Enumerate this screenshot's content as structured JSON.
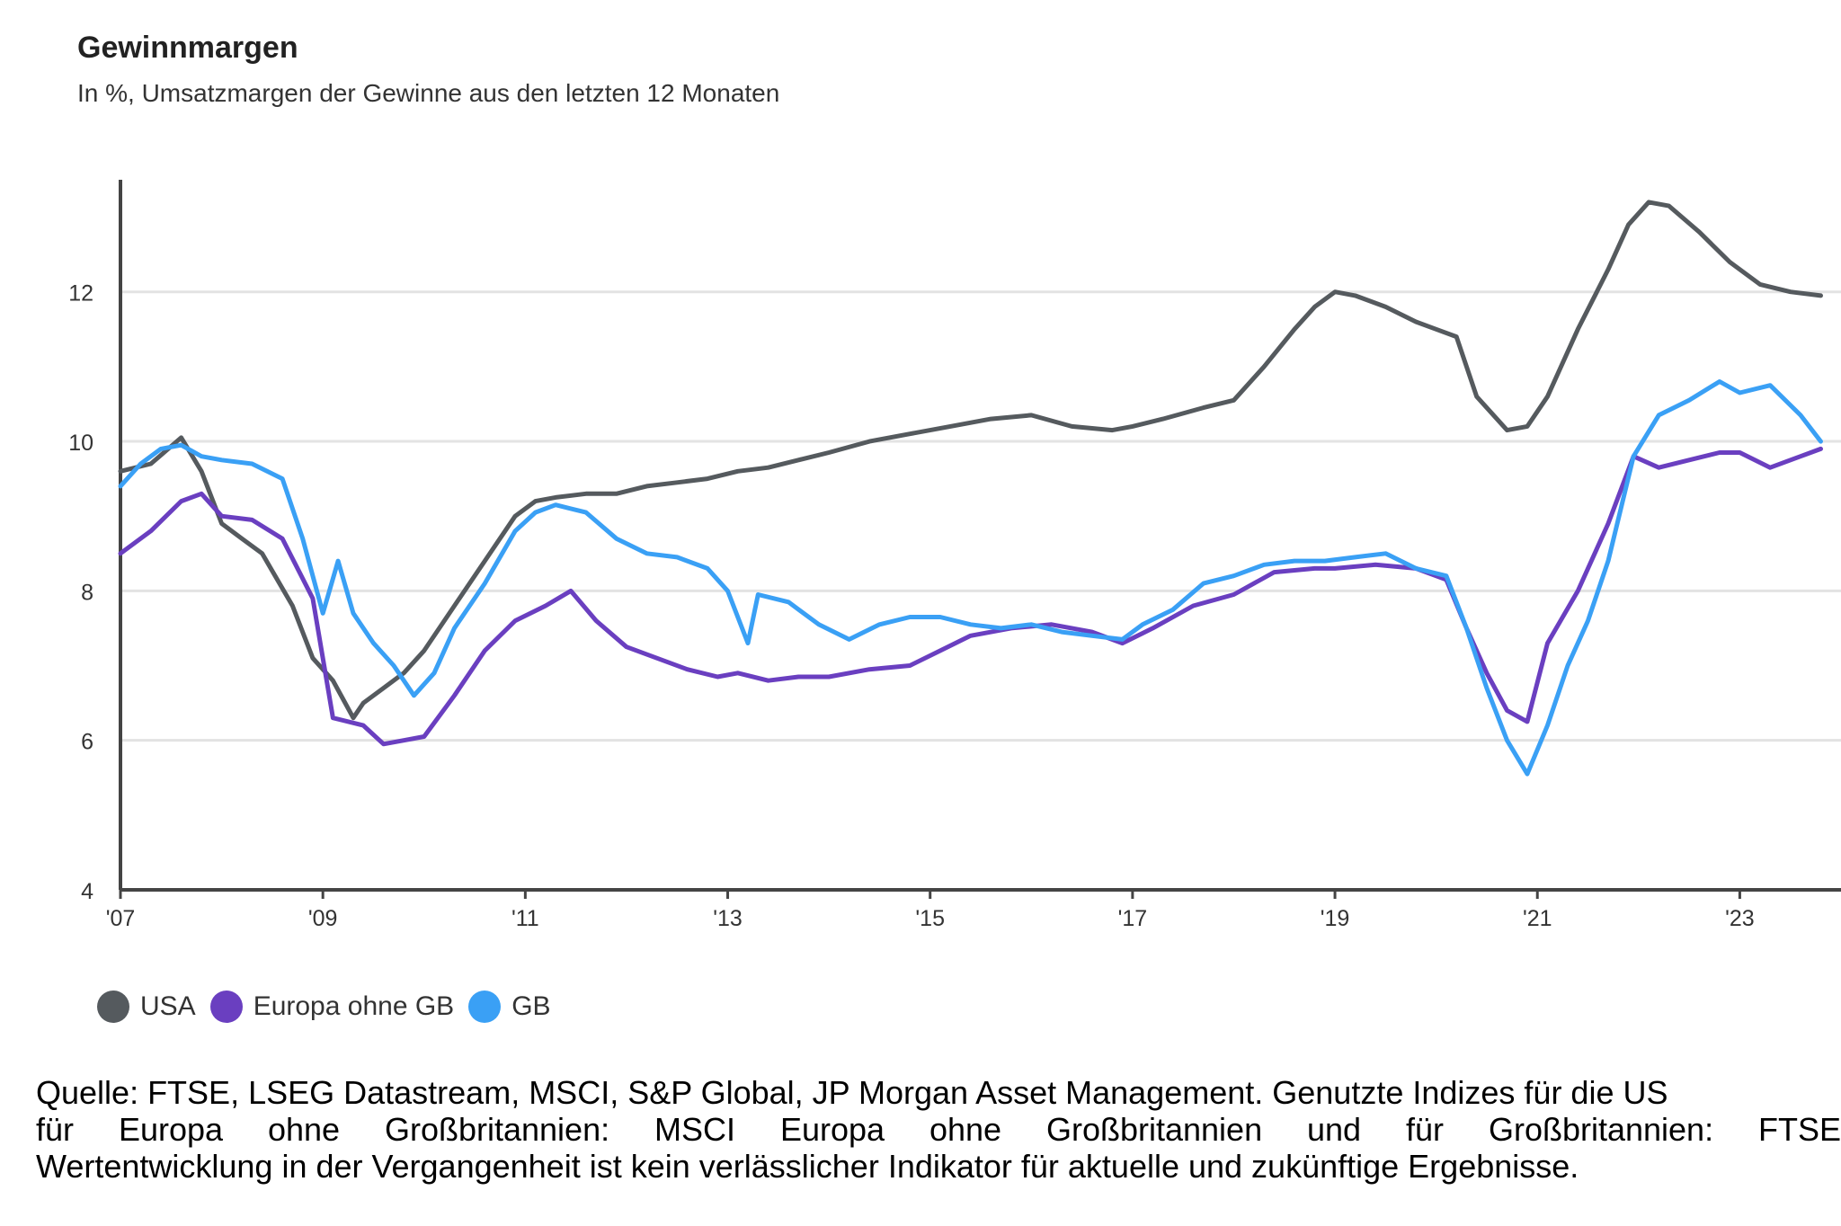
{
  "header": {
    "title": "Gewinnmargen",
    "subtitle": "In %, Umsatzmargen der Gewinne aus den letzten 12 Monaten"
  },
  "legend": [
    {
      "label": "USA",
      "color": "#555a5e"
    },
    {
      "label": "Europa ohne GB",
      "color": "#6a3fc0"
    },
    {
      "label": "GB",
      "color": "#3aa0f5"
    }
  ],
  "source": {
    "line1": "Quelle: FTSE, LSEG Datastream, MSCI, S&P Global, JP Morgan Asset Management. Genutzte Indizes für die US",
    "line2_words": [
      "für",
      "Europa",
      "ohne",
      "Großbritannien:",
      "MSCI",
      "Europa",
      "ohne",
      "Großbritannien",
      "und",
      "für",
      "Großbritannien:",
      "FTSE-All"
    ],
    "line3": "Wertentwicklung in der Vergangenheit ist kein verlässlicher Indikator für aktuelle und zukünftige Ergebnisse."
  },
  "chart_data": {
    "type": "line",
    "title": "Gewinnmargen",
    "subtitle": "In %, Umsatzmargen der Gewinne aus den letzten 12 Monaten",
    "xlabel": "",
    "ylabel": "",
    "xlim": [
      2007.0,
      2024.0
    ],
    "ylim": [
      4,
      13.5
    ],
    "yticks": [
      4,
      6,
      8,
      10,
      12
    ],
    "xticks": [
      {
        "value": 2007,
        "label": "'07"
      },
      {
        "value": 2009,
        "label": "'09"
      },
      {
        "value": 2011,
        "label": "'11"
      },
      {
        "value": 2013,
        "label": "'13"
      },
      {
        "value": 2015,
        "label": "'15"
      },
      {
        "value": 2017,
        "label": "'17"
      },
      {
        "value": 2019,
        "label": "'19"
      },
      {
        "value": 2021,
        "label": "'21"
      },
      {
        "value": 2023,
        "label": "'23"
      }
    ],
    "grid": "horizontal",
    "legend_position": "bottom-left",
    "series": [
      {
        "name": "USA",
        "color": "#555a5e",
        "x": [
          2007.0,
          2007.3,
          2007.6,
          2007.8,
          2008.0,
          2008.2,
          2008.4,
          2008.7,
          2008.9,
          2009.1,
          2009.3,
          2009.4,
          2009.6,
          2009.8,
          2010.0,
          2010.3,
          2010.6,
          2010.9,
          2011.1,
          2011.3,
          2011.6,
          2011.9,
          2012.2,
          2012.5,
          2012.8,
          2013.1,
          2013.4,
          2013.7,
          2014.0,
          2014.4,
          2014.8,
          2015.2,
          2015.6,
          2016.0,
          2016.4,
          2016.8,
          2017.0,
          2017.3,
          2017.7,
          2018.0,
          2018.3,
          2018.6,
          2018.8,
          2019.0,
          2019.2,
          2019.5,
          2019.8,
          2020.0,
          2020.2,
          2020.4,
          2020.7,
          2020.9,
          2021.1,
          2021.4,
          2021.7,
          2021.9,
          2022.1,
          2022.3,
          2022.6,
          2022.9,
          2023.2,
          2023.5,
          2023.8
        ],
        "y": [
          9.6,
          9.7,
          10.05,
          9.6,
          8.9,
          8.7,
          8.5,
          7.8,
          7.1,
          6.8,
          6.3,
          6.5,
          6.7,
          6.9,
          7.2,
          7.8,
          8.4,
          9.0,
          9.2,
          9.25,
          9.3,
          9.3,
          9.4,
          9.45,
          9.5,
          9.6,
          9.65,
          9.75,
          9.85,
          10.0,
          10.1,
          10.2,
          10.3,
          10.35,
          10.2,
          10.15,
          10.2,
          10.3,
          10.45,
          10.55,
          11.0,
          11.5,
          11.8,
          12.0,
          11.95,
          11.8,
          11.6,
          11.5,
          11.4,
          10.6,
          10.15,
          10.2,
          10.6,
          11.5,
          12.3,
          12.9,
          13.2,
          13.15,
          12.8,
          12.4,
          12.1,
          12.0,
          11.95
        ]
      },
      {
        "name": "Europa ohne GB",
        "color": "#6a3fc0",
        "x": [
          2007.0,
          2007.3,
          2007.6,
          2007.8,
          2008.0,
          2008.3,
          2008.6,
          2008.9,
          2009.1,
          2009.4,
          2009.6,
          2009.8,
          2010.0,
          2010.3,
          2010.6,
          2010.9,
          2011.2,
          2011.45,
          2011.7,
          2012.0,
          2012.3,
          2012.6,
          2012.9,
          2013.1,
          2013.4,
          2013.7,
          2014.0,
          2014.4,
          2014.8,
          2015.1,
          2015.4,
          2015.8,
          2016.2,
          2016.6,
          2016.9,
          2017.2,
          2017.6,
          2018.0,
          2018.4,
          2018.8,
          2019.0,
          2019.4,
          2019.8,
          2020.1,
          2020.3,
          2020.5,
          2020.7,
          2020.9,
          2021.1,
          2021.4,
          2021.7,
          2021.95,
          2022.2,
          2022.5,
          2022.8,
          2023.0,
          2023.3,
          2023.6,
          2023.8
        ],
        "y": [
          8.5,
          8.8,
          9.2,
          9.3,
          9.0,
          8.95,
          8.7,
          7.9,
          6.3,
          6.2,
          5.95,
          6.0,
          6.05,
          6.6,
          7.2,
          7.6,
          7.8,
          8.0,
          7.6,
          7.25,
          7.1,
          6.95,
          6.85,
          6.9,
          6.8,
          6.85,
          6.85,
          6.95,
          7.0,
          7.2,
          7.4,
          7.5,
          7.55,
          7.45,
          7.3,
          7.5,
          7.8,
          7.95,
          8.25,
          8.3,
          8.3,
          8.35,
          8.3,
          8.15,
          7.5,
          6.9,
          6.4,
          6.25,
          7.3,
          8.0,
          8.9,
          9.8,
          9.65,
          9.75,
          9.85,
          9.85,
          9.65,
          9.8,
          9.9
        ]
      },
      {
        "name": "GB",
        "color": "#3aa0f5",
        "x": [
          2007.0,
          2007.2,
          2007.4,
          2007.6,
          2007.8,
          2008.0,
          2008.3,
          2008.6,
          2008.8,
          2009.0,
          2009.15,
          2009.3,
          2009.5,
          2009.7,
          2009.9,
          2010.1,
          2010.3,
          2010.6,
          2010.9,
          2011.1,
          2011.3,
          2011.6,
          2011.9,
          2012.2,
          2012.5,
          2012.8,
          2013.0,
          2013.2,
          2013.3,
          2013.6,
          2013.9,
          2014.2,
          2014.5,
          2014.8,
          2015.1,
          2015.4,
          2015.7,
          2016.0,
          2016.3,
          2016.6,
          2016.9,
          2017.1,
          2017.4,
          2017.7,
          2018.0,
          2018.3,
          2018.6,
          2018.9,
          2019.2,
          2019.5,
          2019.8,
          2020.1,
          2020.3,
          2020.5,
          2020.7,
          2020.9,
          2021.1,
          2021.3,
          2021.5,
          2021.7,
          2021.95,
          2022.2,
          2022.5,
          2022.8,
          2023.0,
          2023.3,
          2023.6,
          2023.8
        ],
        "y": [
          9.4,
          9.7,
          9.9,
          9.95,
          9.8,
          9.75,
          9.7,
          9.5,
          8.7,
          7.7,
          8.4,
          7.7,
          7.3,
          7.0,
          6.6,
          6.9,
          7.5,
          8.1,
          8.8,
          9.05,
          9.15,
          9.05,
          8.7,
          8.5,
          8.45,
          8.3,
          8.0,
          7.3,
          7.95,
          7.85,
          7.55,
          7.35,
          7.55,
          7.65,
          7.65,
          7.55,
          7.5,
          7.55,
          7.45,
          7.4,
          7.35,
          7.55,
          7.75,
          8.1,
          8.2,
          8.35,
          8.4,
          8.4,
          8.45,
          8.5,
          8.3,
          8.2,
          7.5,
          6.7,
          6.0,
          5.55,
          6.2,
          7.0,
          7.6,
          8.4,
          9.8,
          10.35,
          10.55,
          10.8,
          10.65,
          10.75,
          10.35,
          10.0
        ]
      }
    ]
  }
}
